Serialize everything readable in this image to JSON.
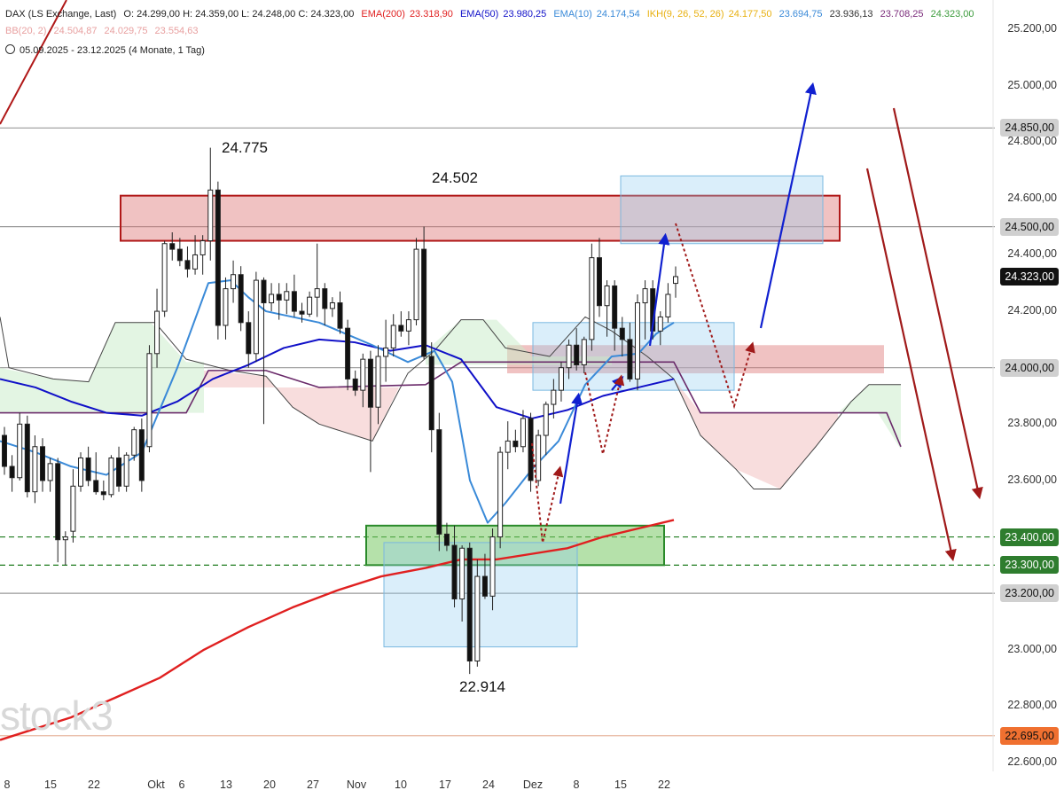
{
  "header": {
    "symbol": "DAX (LS Exchange, Last)",
    "ohlc": "O: 24.299,00  H: 24.359,00  L: 24.248,00  C: 24.323,00",
    "ema200_label": "EMA(200)",
    "ema200_value": "23.318,90",
    "ema50_label": "EMA(50)",
    "ema50_value": "23.980,25",
    "ema10_label": "EMA(10)",
    "ema10_value": "24.174,54",
    "ikh_label": "IKH(9, 26, 52, 26)",
    "ikh_v1": "24.177,50",
    "ikh_v2": "23.694,75",
    "ikh_v3": "23.936,13",
    "ikh_v4": "23.708,25",
    "ikh_v5": "24.323,00",
    "bb_label": "BB(20, 2)",
    "bb_v1": "24.504,87",
    "bb_v2": "24.029,75",
    "bb_v3": "23.554,63",
    "range": "05.09.2025 - 23.12.2025 (4 Monate, 1 Tag)"
  },
  "watermark": "stock3",
  "colors": {
    "ema200": "#e02020",
    "ema50": "#1010c8",
    "ema10": "#3a8ad8",
    "resistance_zone": "#e8a0a0",
    "support_zone": "#9fd88a",
    "target_box": "#cfe7f7",
    "arrow_up": "#1020d0",
    "arrow_down": "#a01a1a"
  },
  "chart_data": {
    "type": "candlestick",
    "title": "DAX (LS Exchange, Last)",
    "y_axis": {
      "range": [
        22550,
        25250
      ],
      "ticks": [
        22600,
        22800,
        23000,
        23200,
        23400,
        23600,
        23800,
        24000,
        24200,
        24400,
        24600,
        24800,
        25000,
        25200
      ],
      "tick_labels": [
        "22.600,00",
        "22.800,00",
        "23.000,00",
        "23.200,00",
        "23.400,00",
        "23.600,00",
        "23.800,00",
        "24.000,00",
        "24.200,00",
        "24.400,00",
        "24.600,00",
        "24.800,00",
        "25.000,00",
        "25.200,00"
      ]
    },
    "x_axis": {
      "tick_labels": [
        "8",
        "15",
        "22",
        "Okt",
        "6",
        "13",
        "20",
        "27",
        "Nov",
        "10",
        "17",
        "24",
        "Dez",
        "8",
        "15",
        "22"
      ]
    },
    "horizontal_levels": [
      {
        "value": 24850,
        "label": "24.850,00",
        "style": "solid-gray"
      },
      {
        "value": 24500,
        "label": "24.500,00",
        "style": "solid-gray"
      },
      {
        "value": 24000,
        "label": "24.000,00",
        "style": "solid-gray"
      },
      {
        "value": 23400,
        "label": "23.400,00",
        "style": "dashed-green"
      },
      {
        "value": 23300,
        "label": "23.300,00",
        "style": "dashed-green"
      },
      {
        "value": 23200,
        "label": "23.200,00",
        "style": "solid-gray"
      },
      {
        "value": 22695,
        "label": "22.695,00",
        "style": "solid-orange"
      }
    ],
    "last_price": {
      "value": 24323,
      "label": "24.323,00"
    },
    "annotations": [
      "24.775",
      "24.502",
      "22.914"
    ],
    "candles": [
      [
        23760,
        23790,
        23620,
        23650
      ],
      [
        23650,
        23690,
        23560,
        23610
      ],
      [
        23610,
        23840,
        23600,
        23800
      ],
      [
        23800,
        23830,
        23540,
        23560
      ],
      [
        23560,
        23760,
        23520,
        23720
      ],
      [
        23720,
        23750,
        23560,
        23600
      ],
      [
        23600,
        23680,
        23560,
        23660
      ],
      [
        23660,
        23680,
        23310,
        23390
      ],
      [
        23390,
        23420,
        23300,
        23400
      ],
      [
        23420,
        23640,
        23380,
        23580
      ],
      [
        23580,
        23700,
        23560,
        23680
      ],
      [
        23680,
        23720,
        23580,
        23600
      ],
      [
        23600,
        23700,
        23550,
        23560
      ],
      [
        23560,
        23600,
        23530,
        23550
      ],
      [
        23550,
        23690,
        23540,
        23680
      ],
      [
        23680,
        23720,
        23560,
        23580
      ],
      [
        23580,
        23700,
        23560,
        23690
      ],
      [
        23690,
        23790,
        23670,
        23780
      ],
      [
        23780,
        23820,
        23560,
        23600
      ],
      [
        23720,
        24080,
        23700,
        24050
      ],
      [
        24050,
        24280,
        24000,
        24200
      ],
      [
        24200,
        24450,
        24180,
        24440
      ],
      [
        24440,
        24480,
        24380,
        24420
      ],
      [
        24420,
        24460,
        24360,
        24380
      ],
      [
        24380,
        24430,
        24320,
        24350
      ],
      [
        24350,
        24470,
        24330,
        24400
      ],
      [
        24400,
        24470,
        24330,
        24450
      ],
      [
        24450,
        24780,
        24380,
        24630
      ],
      [
        24630,
        24660,
        24100,
        24150
      ],
      [
        24150,
        24320,
        24100,
        24280
      ],
      [
        24280,
        24380,
        24230,
        24330
      ],
      [
        24330,
        24360,
        24130,
        24160
      ],
      [
        24160,
        24200,
        24000,
        24050
      ],
      [
        24050,
        24340,
        24020,
        24310
      ],
      [
        24310,
        24320,
        23800,
        24230
      ],
      [
        24230,
        24300,
        24200,
        24260
      ],
      [
        24260,
        24300,
        24170,
        24240
      ],
      [
        24240,
        24300,
        24190,
        24270
      ],
      [
        24270,
        24330,
        24180,
        24200
      ],
      [
        24200,
        24230,
        24160,
        24190
      ],
      [
        24190,
        24270,
        24180,
        24250
      ],
      [
        24250,
        24440,
        24180,
        24280
      ],
      [
        24280,
        24300,
        24150,
        24210
      ],
      [
        24210,
        24250,
        24180,
        24230
      ],
      [
        24230,
        24270,
        24120,
        24140
      ],
      [
        24140,
        24170,
        23920,
        23960
      ],
      [
        23960,
        23990,
        23900,
        23920
      ],
      [
        23920,
        24050,
        23860,
        24030
      ],
      [
        24030,
        24060,
        23630,
        23860
      ],
      [
        23860,
        24080,
        23800,
        24040
      ],
      [
        24040,
        24170,
        23950,
        24070
      ],
      [
        24070,
        24190,
        24040,
        24150
      ],
      [
        24150,
        24200,
        24110,
        24130
      ],
      [
        24130,
        24200,
        24080,
        24170
      ],
      [
        24170,
        24460,
        24150,
        24420
      ],
      [
        24420,
        24500,
        24030,
        24040
      ],
      [
        24040,
        24090,
        23700,
        23780
      ],
      [
        23780,
        23840,
        23350,
        23410
      ],
      [
        23410,
        23450,
        23350,
        23370
      ],
      [
        23370,
        23440,
        23150,
        23180
      ],
      [
        23180,
        23370,
        23100,
        23360
      ],
      [
        23360,
        23380,
        22914,
        22960
      ],
      [
        22960,
        23320,
        22940,
        23260
      ],
      [
        23260,
        23340,
        23180,
        23190
      ],
      [
        23190,
        23430,
        23140,
        23400
      ],
      [
        23400,
        23720,
        23360,
        23700
      ],
      [
        23700,
        23810,
        23640,
        23740
      ],
      [
        23740,
        23780,
        23700,
        23720
      ],
      [
        23720,
        23850,
        23700,
        23820
      ],
      [
        23820,
        23840,
        23560,
        23600
      ],
      [
        23600,
        23780,
        23580,
        23760
      ],
      [
        23760,
        23880,
        23690,
        23870
      ],
      [
        23870,
        23960,
        23820,
        23920
      ],
      [
        23920,
        24020,
        23880,
        24000
      ],
      [
        24000,
        24100,
        23960,
        24080
      ],
      [
        24080,
        24140,
        23990,
        24010
      ],
      [
        24010,
        24110,
        23980,
        24100
      ],
      [
        24100,
        24440,
        24060,
        24390
      ],
      [
        24390,
        24460,
        24180,
        24220
      ],
      [
        24220,
        24310,
        24110,
        24290
      ],
      [
        24290,
        24310,
        24060,
        24140
      ],
      [
        24140,
        24180,
        24040,
        24100
      ],
      [
        24100,
        24160,
        23950,
        23960
      ],
      [
        23960,
        24260,
        23920,
        24230
      ],
      [
        24230,
        24310,
        24100,
        24280
      ],
      [
        24280,
        24310,
        24100,
        24130
      ],
      [
        24130,
        24200,
        24080,
        24180
      ],
      [
        24180,
        24300,
        24160,
        24260
      ],
      [
        24299,
        24359,
        24248,
        24323
      ]
    ],
    "series": [
      {
        "name": "EMA(200)",
        "values": [
          [
            0,
            22680
          ],
          [
            40,
            22720
          ],
          [
            80,
            22760
          ],
          [
            130,
            22830
          ],
          [
            180,
            22900
          ],
          [
            230,
            23000
          ],
          [
            280,
            23080
          ],
          [
            330,
            23150
          ],
          [
            380,
            23210
          ],
          [
            430,
            23260
          ],
          [
            480,
            23290
          ],
          [
            520,
            23320
          ],
          [
            560,
            23320
          ],
          [
            600,
            23340
          ],
          [
            640,
            23360
          ],
          [
            680,
            23400
          ],
          [
            720,
            23430
          ],
          [
            760,
            23460
          ]
        ]
      },
      {
        "name": "EMA(50)",
        "values": [
          [
            0,
            23960
          ],
          [
            40,
            23930
          ],
          [
            80,
            23880
          ],
          [
            120,
            23840
          ],
          [
            160,
            23830
          ],
          [
            200,
            23880
          ],
          [
            240,
            23960
          ],
          [
            280,
            24010
          ],
          [
            320,
            24070
          ],
          [
            360,
            24100
          ],
          [
            400,
            24090
          ],
          [
            440,
            24060
          ],
          [
            480,
            24080
          ],
          [
            520,
            24030
          ],
          [
            560,
            23860
          ],
          [
            600,
            23820
          ],
          [
            640,
            23850
          ],
          [
            680,
            23900
          ],
          [
            720,
            23930
          ],
          [
            760,
            23960
          ]
        ]
      },
      {
        "name": "EMA(10)",
        "values": [
          [
            0,
            23740
          ],
          [
            40,
            23700
          ],
          [
            80,
            23650
          ],
          [
            120,
            23620
          ],
          [
            160,
            23700
          ],
          [
            200,
            24000
          ],
          [
            235,
            24300
          ],
          [
            260,
            24310
          ],
          [
            280,
            24250
          ],
          [
            300,
            24200
          ],
          [
            330,
            24180
          ],
          [
            360,
            24160
          ],
          [
            390,
            24120
          ],
          [
            420,
            24080
          ],
          [
            460,
            24020
          ],
          [
            490,
            24060
          ],
          [
            510,
            23950
          ],
          [
            530,
            23600
          ],
          [
            550,
            23450
          ],
          [
            570,
            23520
          ],
          [
            600,
            23640
          ],
          [
            630,
            23740
          ],
          [
            660,
            23940
          ],
          [
            690,
            24040
          ],
          [
            720,
            24050
          ],
          [
            740,
            24120
          ],
          [
            760,
            24160
          ]
        ]
      }
    ]
  }
}
